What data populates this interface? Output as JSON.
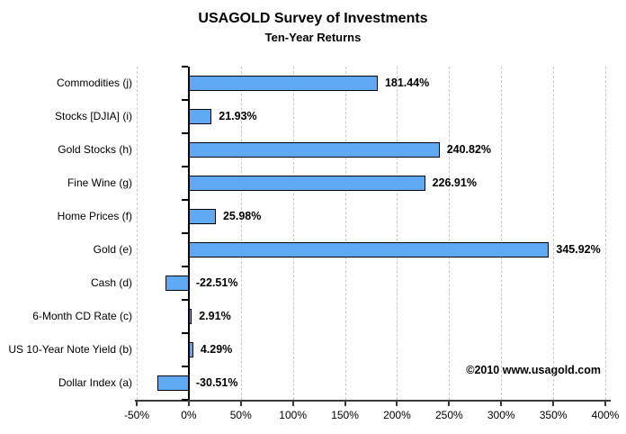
{
  "header": {
    "title": "USAGOLD Survey of Investments",
    "subtitle": "Ten-Year Returns"
  },
  "copyright": "©2010 www.usagold.com",
  "chart_data": {
    "type": "bar",
    "orientation": "horizontal",
    "title": "USAGOLD Survey of Investments",
    "subtitle": "Ten-Year Returns",
    "categories": [
      "Commodities (j)",
      "Stocks [DJIA] (i)",
      "Gold Stocks (h)",
      "Fine Wine (g)",
      "Home Prices (f)",
      "Gold (e)",
      "Cash (d)",
      "6-Month CD Rate (c)",
      "US 10-Year Note Yield (b)",
      "Dollar Index (a)"
    ],
    "values": [
      181.44,
      21.93,
      240.82,
      226.91,
      25.98,
      345.92,
      -22.51,
      2.91,
      4.29,
      -30.51
    ],
    "value_labels": [
      "181.44%",
      "21.93%",
      "240.82%",
      "226.91%",
      "25.98%",
      "345.92%",
      "-22.51%",
      "2.91%",
      "4.29%",
      "-30.51%"
    ],
    "xlabel": "",
    "ylabel": "",
    "xlim": [
      -50,
      400
    ],
    "x_ticks": [
      -50,
      0,
      50,
      100,
      150,
      200,
      250,
      300,
      350,
      400
    ],
    "x_tick_labels": [
      "-50%",
      "0%",
      "50%",
      "100%",
      "150%",
      "200%",
      "250%",
      "300%",
      "350%",
      "400%"
    ],
    "grid": "vertical-dashed",
    "legend": "none",
    "colors": {
      "bar_fill": "#5FA9F3",
      "bar_border": "#000000",
      "gridline": "#c8c8c8",
      "axis": "#3a3a3a",
      "zero_axis": "#000000",
      "text": "#000000",
      "background": "#ffffff"
    }
  }
}
